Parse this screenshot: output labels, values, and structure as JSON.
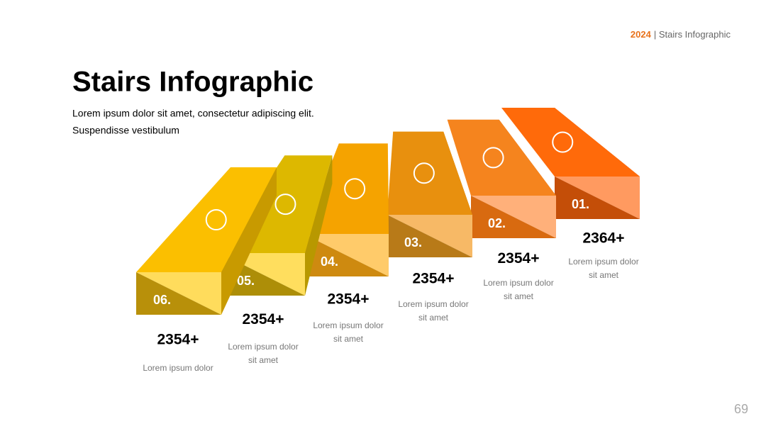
{
  "header": {
    "year": "2024",
    "title": "| Stairs Infographic"
  },
  "title": "Stairs Infographic",
  "subtitle": [
    "Lorem ipsum dolor sit amet, consectetur adipiscing elit.",
    "Suspendisse vestibulum"
  ],
  "steps": [
    {
      "number": "06.",
      "value": "2354+",
      "text": [
        "Lorem ipsum dolor"
      ]
    },
    {
      "number": "05.",
      "value": "2354+",
      "text": [
        "Lorem ipsum dolor",
        "sit amet"
      ]
    },
    {
      "number": "04.",
      "value": "2354+",
      "text": [
        "Lorem ipsum dolor",
        "sit amet"
      ]
    },
    {
      "number": "03.",
      "value": "2354+",
      "text": [
        "Lorem ipsum dolor",
        "sit amet"
      ]
    },
    {
      "number": "02.",
      "value": "2354+",
      "text": [
        "Lorem ipsum dolor",
        "sit amet"
      ]
    },
    {
      "number": "01.",
      "value": "2364+",
      "text": [
        "Lorem ipsum dolor",
        "sit amet"
      ]
    }
  ],
  "page_number": "69"
}
